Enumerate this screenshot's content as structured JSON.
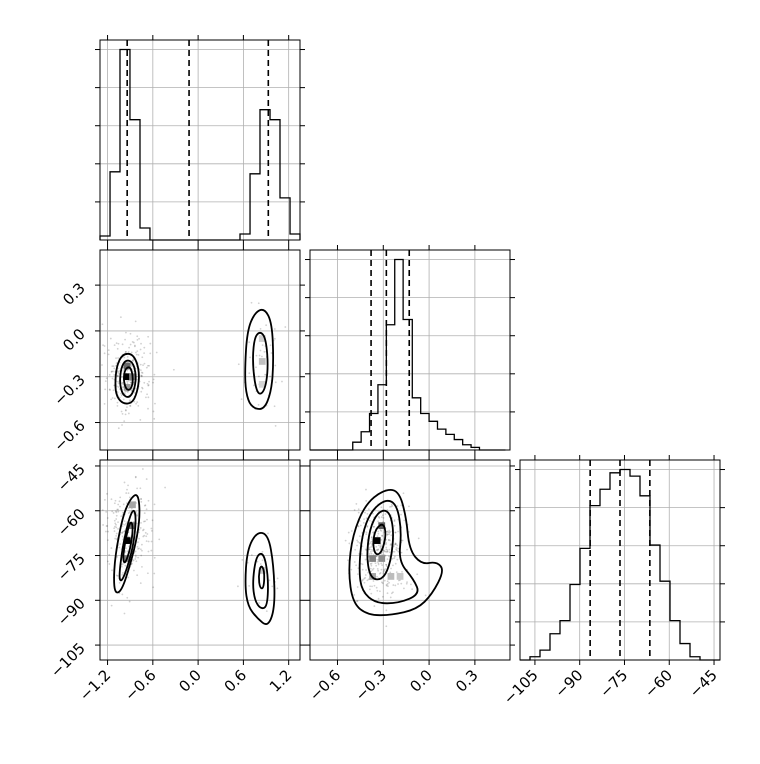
{
  "chart_data": {
    "type": "corner",
    "parameters": 3,
    "ranges": [
      [
        -1.3,
        1.35
      ],
      [
        -0.78,
        0.53
      ],
      [
        -110,
        -43
      ]
    ],
    "ticks": [
      {
        "values": [
          -1.2,
          -0.6,
          0.0,
          0.6,
          1.2
        ],
        "labels": [
          "−1.2",
          "−0.6",
          "0.0",
          "0.6",
          "1.2"
        ]
      },
      {
        "values": [
          -0.6,
          -0.3,
          0.0,
          0.3
        ],
        "labels": [
          "−0.6",
          "−0.3",
          "0.0",
          "0.3"
        ]
      },
      {
        "values": [
          -105,
          -90,
          -75,
          -60,
          -45
        ],
        "labels": [
          "−105",
          "−90",
          "−75",
          "−60",
          "−45"
        ]
      }
    ],
    "grid": true,
    "histograms": [
      {
        "parameter": 0,
        "bin_edges": [
          -1.3,
          -1.167,
          -1.035,
          -0.903,
          -0.77,
          -0.638,
          -0.505,
          -0.373,
          -0.24,
          -0.108,
          0.025,
          0.157,
          0.29,
          0.423,
          0.555,
          0.688,
          0.82,
          0.953,
          1.085,
          1.218,
          1.35
        ],
        "counts": [
          2,
          34,
          95,
          60,
          6,
          0,
          0,
          0,
          0,
          0,
          0,
          0,
          0,
          0,
          3,
          33,
          65,
          60,
          21,
          3
        ],
        "quantiles": [
          -0.94,
          -0.12,
          0.93
        ]
      },
      {
        "parameter": 1,
        "bin_edges": [
          -0.78,
          -0.725,
          -0.67,
          -0.61,
          -0.555,
          -0.5,
          -0.445,
          -0.39,
          -0.335,
          -0.28,
          -0.225,
          -0.17,
          -0.11,
          -0.055,
          0.0,
          0.055,
          0.11,
          0.165,
          0.22,
          0.275,
          0.33,
          0.39,
          0.445,
          0.5
        ],
        "counts": [
          0,
          0,
          0,
          0,
          0,
          3,
          7,
          14,
          25,
          48,
          73,
          50,
          20,
          14,
          11,
          8,
          6,
          4,
          2,
          1,
          0,
          0,
          0
        ],
        "quantiles": [
          -0.38,
          -0.28,
          -0.13
        ]
      },
      {
        "parameter": 2,
        "bin_edges": [
          -110,
          -106.65,
          -103.3,
          -99.95,
          -96.6,
          -93.25,
          -89.9,
          -86.55,
          -83.2,
          -79.85,
          -76.5,
          -73.15,
          -69.8,
          -66.45,
          -63.1,
          -59.75,
          -56.4,
          -53.05,
          -49.7,
          -46.35,
          -43
        ],
        "counts": [
          0,
          1,
          3,
          8,
          12,
          23,
          34,
          47,
          52,
          57,
          58,
          56,
          50,
          35,
          24,
          12,
          5,
          1,
          0,
          0
        ],
        "quantiles": [
          -86.5,
          -76.5,
          -66.5
        ]
      }
    ],
    "joint_panels": [
      {
        "x_param": 0,
        "y_param": 1,
        "density_bins": [
          {
            "x": -0.94,
            "y": -0.3,
            "v": 1.0
          },
          {
            "x": -0.94,
            "y": -0.23,
            "v": 0.55
          },
          {
            "x": -0.87,
            "y": -0.3,
            "v": 0.45
          },
          {
            "x": -0.94,
            "y": -0.37,
            "v": 0.35
          },
          {
            "x": 0.85,
            "y": -0.2,
            "v": 0.18
          },
          {
            "x": 0.85,
            "y": -0.05,
            "v": 0.12
          },
          {
            "x": 0.85,
            "y": -0.35,
            "v": 0.1
          }
        ],
        "contours": [
          [
            [
              -1.1,
              -0.35
            ],
            [
              -1.08,
              -0.23
            ],
            [
              -1.0,
              -0.15
            ],
            [
              -0.86,
              -0.15
            ],
            [
              -0.78,
              -0.25
            ],
            [
              -0.79,
              -0.37
            ],
            [
              -0.86,
              -0.47
            ],
            [
              -0.99,
              -0.48
            ],
            [
              -1.08,
              -0.43
            ]
          ],
          [
            [
              -1.04,
              -0.34
            ],
            [
              -1.02,
              -0.24
            ],
            [
              -0.96,
              -0.19
            ],
            [
              -0.87,
              -0.2
            ],
            [
              -0.82,
              -0.28
            ],
            [
              -0.84,
              -0.38
            ],
            [
              -0.91,
              -0.44
            ],
            [
              -1.0,
              -0.42
            ]
          ],
          [
            [
              -0.99,
              -0.32
            ],
            [
              -0.97,
              -0.25
            ],
            [
              -0.9,
              -0.23
            ],
            [
              -0.86,
              -0.3
            ],
            [
              -0.88,
              -0.38
            ],
            [
              -0.95,
              -0.39
            ]
          ],
          [
            [
              0.62,
              -0.25
            ],
            [
              0.65,
              0.0
            ],
            [
              0.75,
              0.12
            ],
            [
              0.88,
              0.15
            ],
            [
              0.98,
              0.05
            ],
            [
              1.0,
              -0.2
            ],
            [
              0.97,
              -0.4
            ],
            [
              0.87,
              -0.52
            ],
            [
              0.7,
              -0.5
            ],
            [
              0.63,
              -0.4
            ]
          ],
          [
            [
              0.72,
              -0.23
            ],
            [
              0.74,
              -0.05
            ],
            [
              0.82,
              0.0
            ],
            [
              0.9,
              -0.05
            ],
            [
              0.93,
              -0.25
            ],
            [
              0.88,
              -0.4
            ],
            [
              0.78,
              -0.42
            ]
          ]
        ]
      },
      {
        "x_param": 0,
        "y_param": 2,
        "density_bins": [
          {
            "x": -0.94,
            "y": -70,
            "v": 1.0
          },
          {
            "x": -0.87,
            "y": -65,
            "v": 0.5
          },
          {
            "x": -0.94,
            "y": -76,
            "v": 0.45
          },
          {
            "x": -0.87,
            "y": -58,
            "v": 0.3
          },
          {
            "x": 0.85,
            "y": -80,
            "v": 0.15
          }
        ],
        "contours": [
          [
            [
              -1.12,
              -85
            ],
            [
              -1.1,
              -75
            ],
            [
              -1.0,
              -62
            ],
            [
              -0.9,
              -56
            ],
            [
              -0.8,
              -54
            ],
            [
              -0.77,
              -60
            ],
            [
              -0.8,
              -68
            ],
            [
              -0.9,
              -78
            ],
            [
              -1.0,
              -86
            ],
            [
              -1.08,
              -88
            ]
          ],
          [
            [
              -1.05,
              -82
            ],
            [
              -1.0,
              -72
            ],
            [
              -0.92,
              -63
            ],
            [
              -0.85,
              -59
            ],
            [
              -0.82,
              -63
            ],
            [
              -0.86,
              -72
            ],
            [
              -0.95,
              -80
            ],
            [
              -1.02,
              -84
            ]
          ],
          [
            [
              -1.0,
              -76
            ],
            [
              -0.95,
              -68
            ],
            [
              -0.89,
              -63
            ],
            [
              -0.86,
              -66
            ],
            [
              -0.9,
              -73
            ],
            [
              -0.97,
              -78
            ]
          ],
          [
            [
              0.62,
              -85
            ],
            [
              0.65,
              -73
            ],
            [
              0.78,
              -67
            ],
            [
              0.93,
              -68
            ],
            [
              1.0,
              -78
            ],
            [
              1.02,
              -92
            ],
            [
              0.93,
              -99
            ],
            [
              0.78,
              -96
            ],
            [
              0.66,
              -92
            ]
          ],
          [
            [
              0.72,
              -84
            ],
            [
              0.77,
              -75
            ],
            [
              0.87,
              -74
            ],
            [
              0.93,
              -82
            ],
            [
              0.92,
              -92
            ],
            [
              0.83,
              -93
            ],
            [
              0.75,
              -90
            ]
          ],
          [
            [
              0.8,
              -82
            ],
            [
              0.83,
              -78
            ],
            [
              0.88,
              -80
            ],
            [
              0.87,
              -86
            ],
            [
              0.82,
              -86
            ]
          ]
        ]
      },
      {
        "x_param": 1,
        "y_param": 2,
        "density_bins": [
          {
            "x": -0.34,
            "y": -70,
            "v": 1.0
          },
          {
            "x": -0.31,
            "y": -65,
            "v": 0.6
          },
          {
            "x": -0.37,
            "y": -76,
            "v": 0.45
          },
          {
            "x": -0.31,
            "y": -76,
            "v": 0.4
          },
          {
            "x": -0.37,
            "y": -82,
            "v": 0.3
          },
          {
            "x": -0.25,
            "y": -82,
            "v": 0.2
          },
          {
            "x": -0.19,
            "y": -82,
            "v": 0.15
          }
        ],
        "contours": [
          [
            [
              -0.53,
              -80
            ],
            [
              -0.5,
              -68
            ],
            [
              -0.42,
              -58
            ],
            [
              -0.3,
              -53
            ],
            [
              -0.2,
              -53
            ],
            [
              -0.15,
              -62
            ],
            [
              -0.13,
              -73
            ],
            [
              -0.05,
              -78
            ],
            [
              0.05,
              -77
            ],
            [
              0.1,
              -80
            ],
            [
              0.02,
              -88
            ],
            [
              -0.08,
              -93
            ],
            [
              -0.25,
              -95
            ],
            [
              -0.4,
              -95
            ],
            [
              -0.5,
              -91
            ]
          ],
          [
            [
              -0.46,
              -80
            ],
            [
              -0.44,
              -68
            ],
            [
              -0.38,
              -60
            ],
            [
              -0.28,
              -56
            ],
            [
              -0.21,
              -58
            ],
            [
              -0.18,
              -67
            ],
            [
              -0.2,
              -77
            ],
            [
              -0.1,
              -83
            ],
            [
              -0.06,
              -88
            ],
            [
              -0.2,
              -91
            ],
            [
              -0.35,
              -91
            ],
            [
              -0.44,
              -87
            ]
          ],
          [
            [
              -0.41,
              -76
            ],
            [
              -0.39,
              -66
            ],
            [
              -0.33,
              -60
            ],
            [
              -0.26,
              -60
            ],
            [
              -0.23,
              -67
            ],
            [
              -0.25,
              -77
            ],
            [
              -0.3,
              -83
            ],
            [
              -0.38,
              -83
            ]
          ],
          [
            [
              -0.37,
              -71
            ],
            [
              -0.35,
              -66
            ],
            [
              -0.3,
              -64
            ],
            [
              -0.28,
              -68
            ],
            [
              -0.31,
              -74
            ],
            [
              -0.35,
              -75
            ]
          ]
        ]
      }
    ]
  }
}
